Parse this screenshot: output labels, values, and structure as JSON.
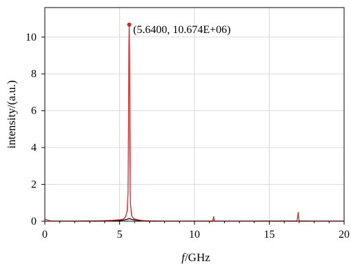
{
  "chart_data": {
    "type": "line",
    "xlabel_italic": "f",
    "xlabel_rest": "/GHz",
    "ylabel": "intensity/(a.u.)",
    "xlim": [
      0,
      20
    ],
    "ylim": [
      0,
      11.6
    ],
    "x_ticks": [
      0,
      5,
      10,
      15,
      20
    ],
    "y_ticks": [
      0,
      2,
      4,
      6,
      8,
      10
    ],
    "grid": true,
    "colors": {
      "main_series": "#e02020",
      "black_series": "#000000",
      "grid": "#d9d9d9",
      "frame": "#000000"
    },
    "series": [
      {
        "color": "#e02020",
        "x": [
          0,
          0.05,
          0.12,
          0.2,
          0.3,
          0.5,
          1,
          2,
          3,
          3.5,
          4,
          4.5,
          5,
          5.2,
          5.3,
          5.4,
          5.5,
          5.56,
          5.6,
          5.62,
          5.64,
          5.66,
          5.68,
          5.72,
          5.8,
          5.9,
          6.0,
          6.2,
          6.4,
          6.6,
          7,
          8,
          10,
          11.2,
          11.25,
          11.28,
          11.31,
          11.35,
          12,
          14,
          16.85,
          16.9,
          16.93,
          16.96,
          17.0,
          18,
          20
        ],
        "y": [
          0.12,
          0.1,
          0.08,
          0.06,
          0.02,
          0.01,
          0.01,
          0.01,
          0.02,
          0.02,
          0.03,
          0.05,
          0.08,
          0.1,
          0.15,
          0.25,
          0.55,
          1.5,
          6.0,
          9.5,
          10.674,
          9.0,
          5.0,
          1.0,
          0.3,
          0.18,
          0.12,
          0.08,
          0.05,
          0.03,
          0.02,
          0.01,
          0.01,
          0.01,
          0.12,
          0.25,
          0.03,
          0.01,
          0.01,
          0.01,
          0.02,
          0.25,
          0.48,
          0.2,
          0.02,
          0.01,
          0.01
        ]
      },
      {
        "color": "#000000",
        "x": [
          3.3,
          4.0,
          4.5,
          5.0,
          5.3,
          5.5,
          5.6,
          5.64,
          5.7,
          5.8,
          6.0,
          6.3,
          6.6,
          7.0,
          7.4
        ],
        "y": [
          0.0,
          0.01,
          0.02,
          0.04,
          0.07,
          0.1,
          0.13,
          0.15,
          0.13,
          0.1,
          0.07,
          0.04,
          0.02,
          0.01,
          0.0
        ]
      }
    ],
    "peak_marker": {
      "x": 5.64,
      "y": 10.674
    },
    "annotation": "(5.6400, 10.674E+06)"
  }
}
